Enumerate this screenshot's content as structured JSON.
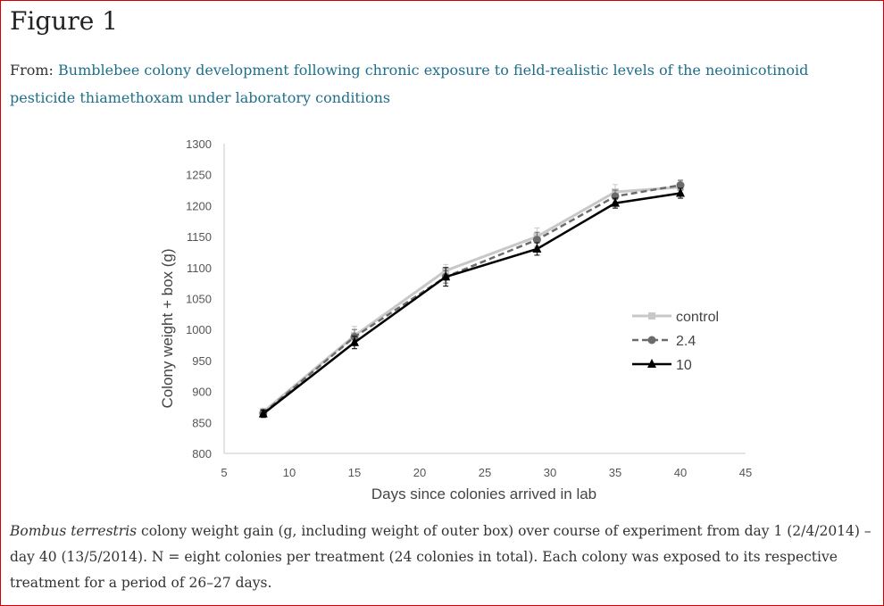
{
  "figure": {
    "title": "Figure 1",
    "from_label": "From:",
    "from_link": "Bumblebee colony development following chronic exposure to field-realistic levels of the neoinicotinoid pesticide thiamethoxam under laboratory conditions"
  },
  "caption": {
    "species": "Bombus terrestris",
    "text": " colony weight gain (g, including weight of outer box) over course of experiment from day 1 (2/4/2014) – day 40 (13/5/2014). N = eight colonies per treatment (24 colonies in total). Each colony was exposed to its respective treatment for a period of 26–27 days."
  },
  "chart_data": {
    "type": "line",
    "xlabel": "Days since colonies arrived in lab",
    "ylabel": "Colony weight + box (g)",
    "xlim": [
      5,
      45
    ],
    "ylim": [
      800,
      1300
    ],
    "xticks": [
      5,
      10,
      15,
      20,
      25,
      30,
      35,
      40,
      45
    ],
    "yticks": [
      800,
      850,
      900,
      950,
      1000,
      1050,
      1100,
      1150,
      1200,
      1250,
      1300
    ],
    "grid": false,
    "legend_position": "right",
    "x": [
      8,
      15,
      22,
      29,
      35,
      40
    ],
    "series": [
      {
        "name": "control",
        "values": [
          867,
          990,
          1095,
          1150,
          1222,
          1230
        ],
        "errors": [
          6,
          15,
          10,
          14,
          12,
          10
        ],
        "color": "#c8c8c8",
        "dash": "solid",
        "marker": "square"
      },
      {
        "name": "2.4",
        "values": [
          865,
          988,
          1085,
          1145,
          1215,
          1233
        ],
        "errors": [
          6,
          12,
          10,
          12,
          10,
          8
        ],
        "color": "#6b6b6b",
        "dash": "dashed",
        "marker": "circle"
      },
      {
        "name": "10",
        "values": [
          864,
          979,
          1085,
          1130,
          1204,
          1220
        ],
        "errors": [
          6,
          10,
          15,
          10,
          8,
          8
        ],
        "color": "#000000",
        "dash": "solid",
        "marker": "triangle"
      }
    ]
  }
}
